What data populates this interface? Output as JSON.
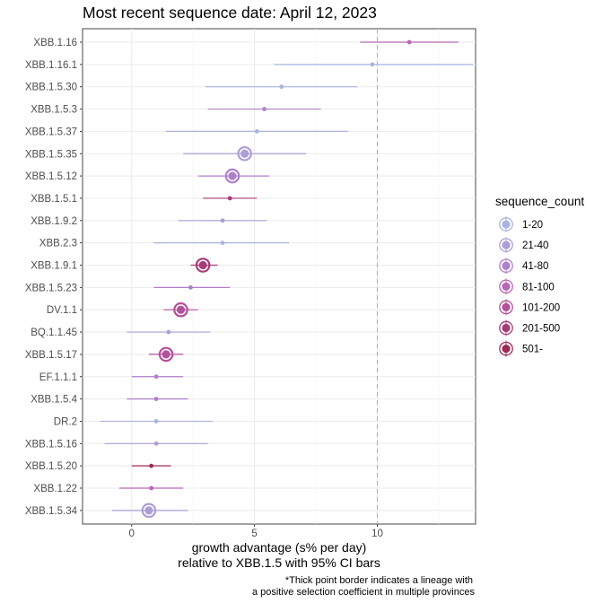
{
  "chart_data": {
    "type": "scatter",
    "title": "Most recent sequence date: April 12, 2023",
    "xlabel_line1": "growth advantage (s% per day)",
    "xlabel_line2": "relative to  XBB.1.5  with 95% CI bars",
    "ylabel": "",
    "xlim": [
      -2.0,
      14.0
    ],
    "x_ticks": [
      0,
      5,
      10
    ],
    "reference_line_x": 10,
    "grid": true,
    "legend": {
      "title": "sequence_count",
      "placement": "right",
      "entries": [
        {
          "label": "1-20",
          "color": "#a9b4e0"
        },
        {
          "label": "21-40",
          "color": "#ad9ed8"
        },
        {
          "label": "41-80",
          "color": "#b07fcc"
        },
        {
          "label": "81-100",
          "color": "#b667b5"
        },
        {
          "label": "101-200",
          "color": "#b4509a"
        },
        {
          "label": "201-500",
          "color": "#a93a78"
        },
        {
          "label": "501-",
          "color": "#9c2b56"
        }
      ]
    },
    "footnote_line1": "*Thick point border indicates a lineage with",
    "footnote_line2": "a positive selection coefficient in multiple provinces",
    "points": [
      {
        "lineage": "XBB.1.16",
        "x": 11.3,
        "lo": 9.3,
        "hi": 13.3,
        "group": 3,
        "thick": false
      },
      {
        "lineage": "XBB.1.16.1",
        "x": 9.8,
        "lo": 5.8,
        "hi": 13.9,
        "group": 0,
        "thick": false
      },
      {
        "lineage": "XBB.1.5.30",
        "x": 6.1,
        "lo": 3.0,
        "hi": 9.2,
        "group": 0,
        "thick": false
      },
      {
        "lineage": "XBB.1.5.3",
        "x": 5.4,
        "lo": 3.1,
        "hi": 7.7,
        "group": 2,
        "thick": false
      },
      {
        "lineage": "XBB.1.5.37",
        "x": 5.1,
        "lo": 1.4,
        "hi": 8.8,
        "group": 0,
        "thick": false
      },
      {
        "lineage": "XBB.1.5.35",
        "x": 4.6,
        "lo": 2.1,
        "hi": 7.1,
        "group": 1,
        "thick": true
      },
      {
        "lineage": "XBB.1.5.12",
        "x": 4.1,
        "lo": 2.7,
        "hi": 5.6,
        "group": 2,
        "thick": true
      },
      {
        "lineage": "XBB.1.5.1",
        "x": 4.0,
        "lo": 2.9,
        "hi": 5.1,
        "group": 5,
        "thick": false
      },
      {
        "lineage": "XBB.1.9.2",
        "x": 3.7,
        "lo": 1.9,
        "hi": 5.5,
        "group": 1,
        "thick": false
      },
      {
        "lineage": "XBB.2.3",
        "x": 3.7,
        "lo": 0.9,
        "hi": 6.4,
        "group": 0,
        "thick": false
      },
      {
        "lineage": "XBB.1.9.1",
        "x": 2.9,
        "lo": 2.4,
        "hi": 3.5,
        "group": 5,
        "thick": true
      },
      {
        "lineage": "XBB.1.5.23",
        "x": 2.4,
        "lo": 0.9,
        "hi": 4.0,
        "group": 2,
        "thick": false
      },
      {
        "lineage": "DV.1.1",
        "x": 2.0,
        "lo": 1.3,
        "hi": 2.7,
        "group": 4,
        "thick": true
      },
      {
        "lineage": "BQ.1.1.45",
        "x": 1.5,
        "lo": -0.2,
        "hi": 3.2,
        "group": 1,
        "thick": false
      },
      {
        "lineage": "XBB.1.5.17",
        "x": 1.4,
        "lo": 0.7,
        "hi": 2.1,
        "group": 4,
        "thick": true
      },
      {
        "lineage": "EF.1.1.1",
        "x": 1.0,
        "lo": 0.0,
        "hi": 2.1,
        "group": 2,
        "thick": false
      },
      {
        "lineage": "XBB.1.5.4",
        "x": 1.0,
        "lo": -0.2,
        "hi": 2.3,
        "group": 2,
        "thick": false
      },
      {
        "lineage": "DR.2",
        "x": 1.0,
        "lo": -1.3,
        "hi": 3.3,
        "group": 0,
        "thick": false
      },
      {
        "lineage": "XBB.1.5.16",
        "x": 1.0,
        "lo": -1.1,
        "hi": 3.1,
        "group": 1,
        "thick": false
      },
      {
        "lineage": "XBB.1.5.20",
        "x": 0.8,
        "lo": 0.0,
        "hi": 1.6,
        "group": 6,
        "thick": false
      },
      {
        "lineage": "XBB.1.22",
        "x": 0.8,
        "lo": -0.5,
        "hi": 2.1,
        "group": 3,
        "thick": false
      },
      {
        "lineage": "XBB.1.5.34",
        "x": 0.7,
        "lo": -0.8,
        "hi": 2.3,
        "group": 1,
        "thick": true
      }
    ]
  }
}
